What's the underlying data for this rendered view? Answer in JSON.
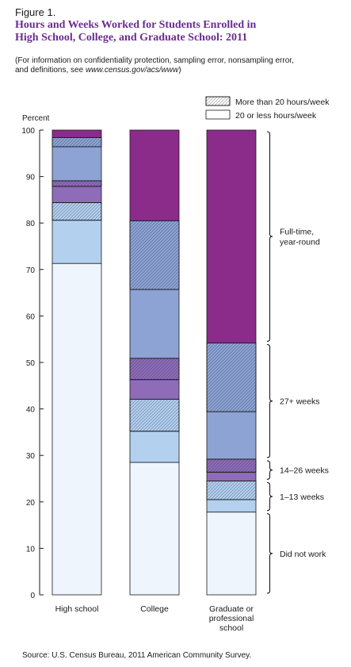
{
  "figure_label": "Figure 1.",
  "title_line1": "Hours and Weeks Worked for Students Enrolled in",
  "title_line2": "High School, College, and Graduate School: 2011",
  "note_pre": "(For information on confidentiality protection, sampling error, nonsampling error,",
  "note_line2_pre": "and definitions, see ",
  "note_url": "www.census.gov/acs/www",
  "note_line2_post": ")",
  "source": "Source: U.S. Census Bureau, 2011 American Community Survey.",
  "colors": {
    "did_not_work": "#eef5fd",
    "weeks_1_13": "#b3d0ef",
    "weeks_14_26": "#8e6cb8",
    "weeks_27_plus": "#8da3d4",
    "full_time": "#8b2b8a",
    "outline": "#1a1a1a"
  },
  "chart_data": {
    "type": "bar",
    "stacked": true,
    "ylabel": "Percent",
    "ylim": [
      0,
      100
    ],
    "yticks": [
      0,
      10,
      20,
      30,
      40,
      50,
      60,
      70,
      80,
      90,
      100
    ],
    "categories": [
      {
        "lines": [
          "High school"
        ]
      },
      {
        "lines": [
          "College"
        ]
      },
      {
        "lines": [
          "Graduate or",
          "professional",
          "school"
        ]
      }
    ],
    "legend": [
      {
        "label": "More than 20 hours/week",
        "pattern": "hatched"
      },
      {
        "label": "20 or less hours/week",
        "pattern": "solid"
      }
    ],
    "groups": [
      {
        "label_lines": [
          "Did not work"
        ],
        "range": [
          0,
          17.8
        ]
      },
      {
        "label_lines": [
          "1–13 weeks"
        ],
        "range": [
          17.8,
          24.5
        ]
      },
      {
        "label_lines": [
          "14–26 weeks"
        ],
        "range": [
          24.5,
          29.2
        ]
      },
      {
        "label_lines": [
          "27+ weeks"
        ],
        "range": [
          29.2,
          54.2
        ]
      },
      {
        "label_lines": [
          "Full-time,",
          "year-round"
        ],
        "range": [
          54.2,
          100
        ]
      }
    ],
    "series": [
      {
        "group": "did_not_work",
        "hours": "",
        "values": [
          71.3,
          28.5,
          17.8
        ]
      },
      {
        "group": "weeks_1_13",
        "hours": "20 or less hours/week",
        "values": [
          9.3,
          6.7,
          2.7
        ]
      },
      {
        "group": "weeks_1_13",
        "hours": "More than 20 hours/week",
        "values": [
          3.8,
          6.9,
          4.0
        ]
      },
      {
        "group": "weeks_14_26",
        "hours": "20 or less hours/week",
        "values": [
          3.5,
          4.2,
          1.9
        ]
      },
      {
        "group": "weeks_14_26",
        "hours": "More than 20 hours/week",
        "values": [
          1.2,
          4.6,
          2.8
        ]
      },
      {
        "group": "weeks_27_plus",
        "hours": "20 or less hours/week",
        "values": [
          7.3,
          14.8,
          10.2
        ]
      },
      {
        "group": "weeks_27_plus",
        "hours": "More than 20 hours/week",
        "values": [
          2.0,
          14.8,
          14.8
        ]
      },
      {
        "group": "full_time",
        "hours": "",
        "values": [
          1.6,
          19.5,
          45.8
        ]
      }
    ]
  }
}
